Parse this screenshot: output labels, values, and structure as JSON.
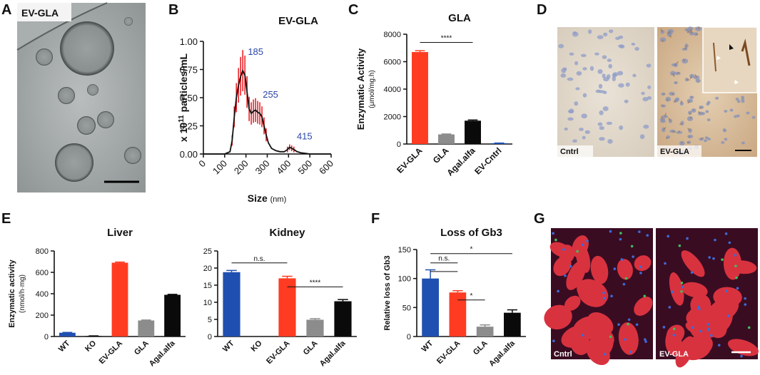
{
  "panels": {
    "A": {
      "label": "A",
      "tag": "EV-GLA"
    },
    "B": {
      "label": "B"
    },
    "C": {
      "label": "C"
    },
    "D": {
      "label": "D",
      "left": "Cntrl",
      "right": "EV-GLA"
    },
    "E": {
      "label": "E"
    },
    "F": {
      "label": "F"
    },
    "G": {
      "label": "G",
      "left": "Cntrl",
      "right": "EV-GLA"
    }
  },
  "colors": {
    "blue": "#1f4fb0",
    "red": "#ff3b22",
    "gray": "#8c8c8c",
    "black": "#0a0a0a",
    "nta": "#e8242a"
  },
  "chart_data": [
    {
      "id": "B",
      "type": "line",
      "title": "EV-GLA",
      "xlabel": "Size",
      "xlabel_unit": "(nm)",
      "ylabel_prefix": "x 10",
      "ylabel_exp": "11",
      "ylabel_suffix": " particles/mL",
      "xlim": [
        0,
        600
      ],
      "ylim": [
        0,
        1.0
      ],
      "xticks": [
        "0",
        "100",
        "200",
        "300",
        "400",
        "500",
        "600"
      ],
      "yticks": [
        "0.00",
        "0.25",
        "0.50",
        "0.75",
        "1.00"
      ],
      "x": [
        0,
        100,
        125,
        135,
        145,
        155,
        165,
        175,
        185,
        195,
        205,
        215,
        225,
        235,
        245,
        255,
        265,
        275,
        285,
        295,
        305,
        320,
        340,
        360,
        380,
        395,
        405,
        415,
        425,
        440,
        460,
        480,
        500,
        600
      ],
      "y": [
        0,
        0,
        0.02,
        0.12,
        0.33,
        0.5,
        0.61,
        0.69,
        0.74,
        0.7,
        0.55,
        0.4,
        0.36,
        0.38,
        0.39,
        0.37,
        0.36,
        0.33,
        0.25,
        0.17,
        0.1,
        0.05,
        0.03,
        0.02,
        0.02,
        0.04,
        0.06,
        0.05,
        0.04,
        0.02,
        0.01,
        0.005,
        0,
        0
      ],
      "peaks": [
        {
          "x": 185,
          "y": 0.88,
          "label": "185"
        },
        {
          "x": 255,
          "y": 0.5,
          "label": "255"
        },
        {
          "x": 415,
          "y": 0.13,
          "label": "415"
        }
      ]
    },
    {
      "id": "C",
      "type": "bar",
      "title": "GLA",
      "ylabel": "Enzymatic Activity",
      "ylabel_unit": "(μmol/mg.h)",
      "categories": [
        "EV-GLA",
        "GLA",
        "Agal.alfa",
        "EV-Cntrl"
      ],
      "values": [
        6700,
        700,
        1700,
        60
      ],
      "errors": [
        100,
        30,
        50,
        10
      ],
      "ylim": [
        0,
        8000
      ],
      "yticks": [
        "0",
        "2000",
        "4000",
        "6000",
        "8000"
      ],
      "significance": [
        {
          "from": 0,
          "to": 2,
          "y": 7400,
          "label": "****"
        }
      ]
    },
    {
      "id": "E1",
      "type": "bar",
      "title": "Liver",
      "ylabel": "Enzymatic activity",
      "ylabel_unit": "(nmol/h·mg)",
      "categories": [
        "WT",
        "KO",
        "EV-GLA",
        "GLA",
        "Agal.alfa"
      ],
      "values": [
        35,
        5,
        690,
        150,
        390
      ],
      "errors": [
        3,
        1,
        6,
        4,
        4
      ],
      "ylim": [
        0,
        800
      ],
      "yticks": [
        "0",
        "200",
        "400",
        "600",
        "800"
      ]
    },
    {
      "id": "E2",
      "type": "bar",
      "title": "Kidney",
      "categories": [
        "WT",
        "KO",
        "EV-GLA",
        "GLA",
        "Agal.alfa"
      ],
      "values": [
        18.8,
        0,
        17.0,
        4.9,
        10.3
      ],
      "errors": [
        0.5,
        0,
        0.6,
        0.3,
        0.5
      ],
      "ylim": [
        0,
        25
      ],
      "yticks": [
        "0",
        "5",
        "10",
        "15",
        "20",
        "25"
      ],
      "significance": [
        {
          "from": 0,
          "to": 2,
          "y": 21.5,
          "label": "n.s."
        },
        {
          "from": 2,
          "to": 4,
          "y": 14.5,
          "label": "****"
        }
      ]
    },
    {
      "id": "F",
      "type": "bar",
      "title": "Loss of Gb3",
      "ylabel": "Relative loss of Gb3",
      "categories": [
        "WT",
        "EV-GLA",
        "GLA",
        "Agal.alfa"
      ],
      "values": [
        100,
        76,
        17,
        41
      ],
      "errors": [
        15,
        3,
        3,
        5
      ],
      "ylim": [
        0,
        150
      ],
      "yticks": [
        "0",
        "50",
        "100",
        "150"
      ],
      "significance": [
        {
          "from": 0,
          "to": 3,
          "y": 143,
          "label": "*"
        },
        {
          "from": 0,
          "to": 1,
          "y": 127,
          "label": "n.s."
        },
        {
          "from": 0,
          "to": 1,
          "y": 112,
          "label": ""
        },
        {
          "from": 1,
          "to": 2,
          "y": 63,
          "label": "*"
        }
      ]
    }
  ]
}
